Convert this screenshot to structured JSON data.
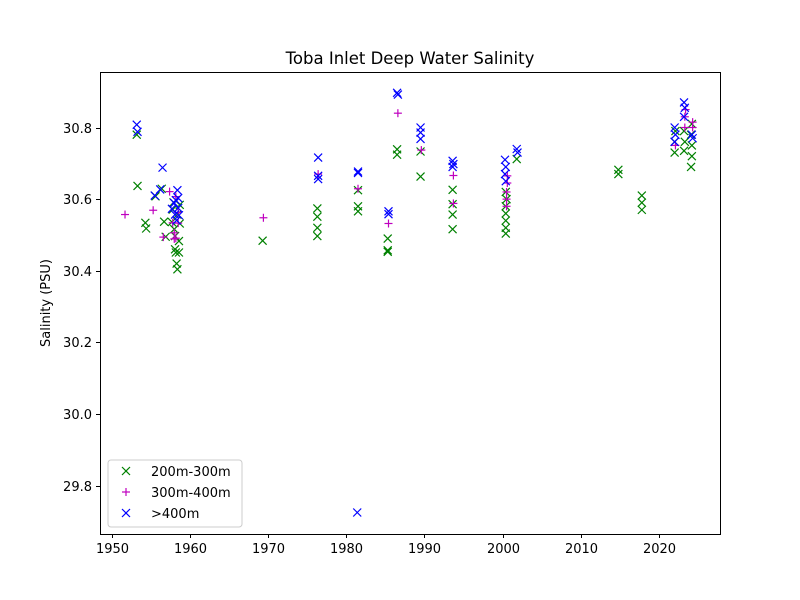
{
  "chart_data": {
    "type": "scatter",
    "title": "Toba Inlet Deep Water Salinity",
    "xlabel": "",
    "ylabel": "Salinity (PSU)",
    "xlim": [
      1948.5,
      2027.8
    ],
    "ylim": [
      29.665,
      30.955
    ],
    "xticks": [
      1950,
      1960,
      1970,
      1980,
      1990,
      2000,
      2010,
      2020
    ],
    "yticks": [
      29.8,
      30.0,
      30.2,
      30.4,
      30.6,
      30.8
    ],
    "ytick_labels": [
      "29.8",
      "30.0",
      "30.2",
      "30.4",
      "30.6",
      "30.8"
    ],
    "grid": false,
    "legend_position": "bottom-left",
    "series": [
      {
        "name": "200m-300m",
        "marker": "x",
        "color": "#008000",
        "points": [
          [
            1953.2,
            30.78
          ],
          [
            1953.3,
            30.637
          ],
          [
            1954.3,
            30.534
          ],
          [
            1954.4,
            30.518
          ],
          [
            1955.6,
            30.608
          ],
          [
            1956.4,
            30.629
          ],
          [
            1956.7,
            30.537
          ],
          [
            1956.9,
            30.495
          ],
          [
            1957.7,
            30.536
          ],
          [
            1957.8,
            30.571
          ],
          [
            1957.9,
            30.591
          ],
          [
            1958.0,
            30.516
          ],
          [
            1958.1,
            30.497
          ],
          [
            1958.1,
            30.46
          ],
          [
            1958.2,
            30.451
          ],
          [
            1958.3,
            30.42
          ],
          [
            1958.4,
            30.404
          ],
          [
            1958.4,
            30.557
          ],
          [
            1958.6,
            30.483
          ],
          [
            1958.6,
            30.451
          ],
          [
            1958.7,
            30.532
          ],
          [
            1958.7,
            30.584
          ],
          [
            1969.3,
            30.484
          ],
          [
            1976.3,
            30.574
          ],
          [
            1976.3,
            30.551
          ],
          [
            1976.3,
            30.52
          ],
          [
            1976.3,
            30.497
          ],
          [
            1981.5,
            30.58
          ],
          [
            1981.5,
            30.566
          ],
          [
            1981.5,
            30.625
          ],
          [
            1985.3,
            30.49
          ],
          [
            1985.3,
            30.457
          ],
          [
            1985.3,
            30.453
          ],
          [
            1986.5,
            30.739
          ],
          [
            1986.5,
            30.724
          ],
          [
            1989.5,
            30.663
          ],
          [
            1989.5,
            30.733
          ],
          [
            1993.6,
            30.626
          ],
          [
            1993.6,
            30.586
          ],
          [
            1993.6,
            30.557
          ],
          [
            1993.6,
            30.516
          ],
          [
            2000.4,
            30.504
          ],
          [
            2000.4,
            30.52
          ],
          [
            2000.4,
            30.54
          ],
          [
            2000.4,
            30.56
          ],
          [
            2000.4,
            30.58
          ],
          [
            2000.5,
            30.6
          ],
          [
            2000.4,
            30.62
          ],
          [
            2001.8,
            30.712
          ],
          [
            2014.8,
            30.67
          ],
          [
            2014.8,
            30.682
          ],
          [
            2017.8,
            30.57
          ],
          [
            2017.8,
            30.59
          ],
          [
            2017.8,
            30.61
          ],
          [
            2022.0,
            30.73
          ],
          [
            2022.0,
            30.76
          ],
          [
            2022.1,
            30.79
          ],
          [
            2023.2,
            30.735
          ],
          [
            2023.3,
            30.76
          ],
          [
            2023.2,
            30.79
          ],
          [
            2024.1,
            30.69
          ],
          [
            2024.2,
            30.72
          ],
          [
            2024.2,
            30.75
          ],
          [
            2024.1,
            30.78
          ],
          [
            2024.2,
            30.81
          ]
        ]
      },
      {
        "name": "300m-400m",
        "marker": "+",
        "color": "#bf00bf",
        "points": [
          [
            1951.7,
            30.557
          ],
          [
            1955.3,
            30.569
          ],
          [
            1956.6,
            30.494
          ],
          [
            1957.4,
            30.621
          ],
          [
            1957.8,
            30.534
          ],
          [
            1958.0,
            30.489
          ],
          [
            1958.0,
            30.506
          ],
          [
            1958.2,
            30.607
          ],
          [
            1958.2,
            30.491
          ],
          [
            1958.5,
            30.533
          ],
          [
            1958.5,
            30.563
          ],
          [
            1969.4,
            30.548
          ],
          [
            1976.4,
            30.67
          ],
          [
            1981.5,
            30.629
          ],
          [
            1985.4,
            30.532
          ],
          [
            1986.6,
            30.84
          ],
          [
            1989.6,
            30.737
          ],
          [
            1993.7,
            30.588
          ],
          [
            1993.7,
            30.666
          ],
          [
            2000.5,
            30.58
          ],
          [
            2000.5,
            30.6
          ],
          [
            2000.5,
            30.62
          ],
          [
            2000.6,
            30.645
          ],
          [
            2000.6,
            30.665
          ],
          [
            2022.1,
            30.75
          ],
          [
            2023.3,
            30.8
          ],
          [
            2023.3,
            30.83
          ],
          [
            2023.4,
            30.85
          ],
          [
            2024.3,
            30.8
          ],
          [
            2024.3,
            30.815
          ]
        ]
      },
      {
        "name": ">400m",
        "marker": "x",
        "color": "#0000ff",
        "points": [
          [
            1953.2,
            30.808
          ],
          [
            1953.3,
            30.788
          ],
          [
            1955.5,
            30.61
          ],
          [
            1956.2,
            30.627
          ],
          [
            1956.5,
            30.688
          ],
          [
            1957.7,
            30.573
          ],
          [
            1958.0,
            30.589
          ],
          [
            1958.2,
            30.597
          ],
          [
            1958.4,
            30.625
          ],
          [
            1958.5,
            30.603
          ],
          [
            1958.5,
            30.575
          ],
          [
            1958.6,
            30.555
          ],
          [
            1958.3,
            30.541
          ],
          [
            1958.1,
            30.557
          ],
          [
            1976.4,
            30.716
          ],
          [
            1976.4,
            30.665
          ],
          [
            1976.4,
            30.656
          ],
          [
            1981.5,
            30.673
          ],
          [
            1981.5,
            30.677
          ],
          [
            1981.4,
            29.725
          ],
          [
            1985.4,
            30.566
          ],
          [
            1985.4,
            30.558
          ],
          [
            1986.5,
            30.897
          ],
          [
            1986.6,
            30.892
          ],
          [
            1989.5,
            30.8
          ],
          [
            1989.5,
            30.786
          ],
          [
            1989.5,
            30.768
          ],
          [
            1993.6,
            30.707
          ],
          [
            1993.7,
            30.698
          ],
          [
            1993.6,
            30.69
          ],
          [
            2000.3,
            30.71
          ],
          [
            2000.4,
            30.69
          ],
          [
            2000.3,
            30.67
          ],
          [
            2000.4,
            30.65
          ],
          [
            2001.8,
            30.74
          ],
          [
            2001.9,
            30.73
          ],
          [
            2022.0,
            30.8
          ],
          [
            2022.1,
            30.78
          ],
          [
            2022.0,
            30.76
          ],
          [
            2023.2,
            30.87
          ],
          [
            2023.3,
            30.855
          ],
          [
            2023.2,
            30.83
          ],
          [
            2024.2,
            30.78
          ],
          [
            2024.3,
            30.77
          ]
        ]
      }
    ]
  }
}
